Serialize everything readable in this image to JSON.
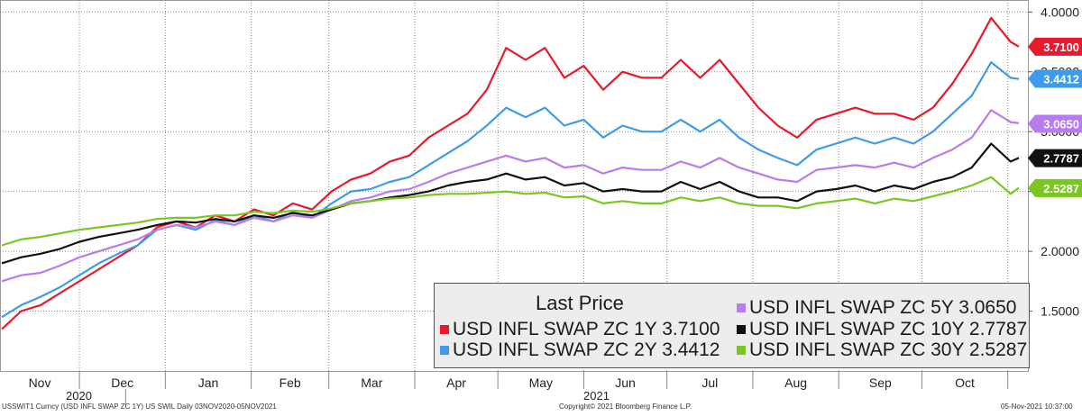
{
  "chart_data": {
    "type": "line",
    "ylim": [
      1.0,
      4.1
    ],
    "y_ticks": [
      "1.5000",
      "2.0000",
      "2.5000",
      "3.0000",
      "3.5000",
      "4.0000"
    ],
    "x_ticks": [
      "Nov",
      "Dec",
      "Jan",
      "Feb",
      "Mar",
      "Apr",
      "May",
      "Jun",
      "Jul",
      "Aug",
      "Sep",
      "Oct"
    ],
    "year_labels": [
      "2020",
      "2021"
    ],
    "grid": true,
    "x": [
      "2020-11-03",
      "2020-11-10",
      "2020-11-17",
      "2020-11-24",
      "2020-12-01",
      "2020-12-08",
      "2020-12-15",
      "2020-12-22",
      "2020-12-29",
      "2021-01-05",
      "2021-01-12",
      "2021-01-19",
      "2021-01-26",
      "2021-02-02",
      "2021-02-09",
      "2021-02-16",
      "2021-02-23",
      "2021-03-02",
      "2021-03-09",
      "2021-03-16",
      "2021-03-23",
      "2021-03-30",
      "2021-04-06",
      "2021-04-13",
      "2021-04-20",
      "2021-04-27",
      "2021-05-04",
      "2021-05-11",
      "2021-05-18",
      "2021-05-25",
      "2021-06-01",
      "2021-06-08",
      "2021-06-15",
      "2021-06-22",
      "2021-06-29",
      "2021-07-06",
      "2021-07-13",
      "2021-07-20",
      "2021-07-27",
      "2021-08-03",
      "2021-08-10",
      "2021-08-17",
      "2021-08-24",
      "2021-08-31",
      "2021-09-07",
      "2021-09-14",
      "2021-09-21",
      "2021-09-28",
      "2021-10-05",
      "2021-10-12",
      "2021-10-19",
      "2021-10-26",
      "2021-11-02",
      "2021-11-05"
    ],
    "series": [
      {
        "name": "USD INFL SWAP ZC 1Y",
        "color": "#e8192c",
        "last": "3.7100",
        "values": [
          1.35,
          1.5,
          1.55,
          1.65,
          1.75,
          1.85,
          1.95,
          2.05,
          2.2,
          2.25,
          2.2,
          2.3,
          2.25,
          2.35,
          2.3,
          2.4,
          2.35,
          2.5,
          2.6,
          2.65,
          2.75,
          2.8,
          2.95,
          3.05,
          3.15,
          3.35,
          3.7,
          3.6,
          3.7,
          3.45,
          3.55,
          3.35,
          3.5,
          3.45,
          3.45,
          3.6,
          3.45,
          3.6,
          3.4,
          3.2,
          3.05,
          2.95,
          3.1,
          3.15,
          3.2,
          3.15,
          3.15,
          3.1,
          3.2,
          3.4,
          3.65,
          3.95,
          3.75,
          3.71
        ]
      },
      {
        "name": "USD INFL SWAP ZC 2Y",
        "color": "#3d9be9",
        "last": "3.4412",
        "values": [
          1.45,
          1.55,
          1.62,
          1.7,
          1.8,
          1.9,
          1.98,
          2.05,
          2.18,
          2.22,
          2.18,
          2.26,
          2.22,
          2.3,
          2.25,
          2.33,
          2.28,
          2.4,
          2.5,
          2.52,
          2.58,
          2.62,
          2.72,
          2.82,
          2.92,
          3.05,
          3.2,
          3.12,
          3.2,
          3.05,
          3.1,
          2.95,
          3.05,
          3.0,
          3.0,
          3.1,
          3.0,
          3.1,
          2.95,
          2.85,
          2.78,
          2.72,
          2.85,
          2.9,
          2.95,
          2.9,
          2.95,
          2.9,
          3.0,
          3.15,
          3.3,
          3.58,
          3.45,
          3.44
        ]
      },
      {
        "name": "USD INFL SWAP ZC 5Y",
        "color": "#b77cf0",
        "last": "3.0650",
        "values": [
          1.75,
          1.8,
          1.82,
          1.88,
          1.95,
          2.0,
          2.05,
          2.1,
          2.18,
          2.22,
          2.2,
          2.25,
          2.22,
          2.28,
          2.25,
          2.3,
          2.28,
          2.35,
          2.42,
          2.45,
          2.5,
          2.52,
          2.58,
          2.65,
          2.7,
          2.75,
          2.8,
          2.75,
          2.78,
          2.7,
          2.72,
          2.65,
          2.7,
          2.68,
          2.68,
          2.75,
          2.7,
          2.78,
          2.7,
          2.65,
          2.6,
          2.58,
          2.68,
          2.7,
          2.72,
          2.7,
          2.74,
          2.7,
          2.78,
          2.85,
          2.95,
          3.18,
          3.08,
          3.07
        ]
      },
      {
        "name": "USD INFL SWAP ZC 10Y",
        "color": "#111111",
        "last": "2.7787",
        "values": [
          1.9,
          1.95,
          1.98,
          2.02,
          2.08,
          2.12,
          2.15,
          2.18,
          2.22,
          2.25,
          2.24,
          2.27,
          2.25,
          2.3,
          2.28,
          2.32,
          2.3,
          2.35,
          2.4,
          2.42,
          2.45,
          2.47,
          2.5,
          2.55,
          2.58,
          2.6,
          2.65,
          2.6,
          2.62,
          2.55,
          2.57,
          2.5,
          2.52,
          2.5,
          2.5,
          2.58,
          2.52,
          2.58,
          2.5,
          2.45,
          2.45,
          2.42,
          2.5,
          2.52,
          2.55,
          2.5,
          2.55,
          2.52,
          2.58,
          2.62,
          2.7,
          2.9,
          2.75,
          2.78
        ]
      },
      {
        "name": "USD INFL SWAP ZC 30Y",
        "color": "#7cc623",
        "last": "2.5287",
        "values": [
          2.05,
          2.1,
          2.12,
          2.15,
          2.18,
          2.2,
          2.22,
          2.24,
          2.27,
          2.28,
          2.28,
          2.3,
          2.3,
          2.33,
          2.32,
          2.34,
          2.33,
          2.36,
          2.4,
          2.42,
          2.44,
          2.45,
          2.47,
          2.48,
          2.48,
          2.49,
          2.5,
          2.48,
          2.49,
          2.45,
          2.46,
          2.4,
          2.42,
          2.4,
          2.4,
          2.45,
          2.42,
          2.45,
          2.4,
          2.38,
          2.38,
          2.36,
          2.4,
          2.42,
          2.44,
          2.4,
          2.44,
          2.42,
          2.46,
          2.5,
          2.55,
          2.62,
          2.48,
          2.53
        ]
      }
    ]
  },
  "legend": {
    "title": "Last Price",
    "items": [
      {
        "text": "USD  INFL  SWAP  ZC  1Y 3.7100",
        "color": "#e8192c"
      },
      {
        "text": "USD  INFL  SWAP  ZC  2Y 3.4412",
        "color": "#3d9be9"
      },
      {
        "text": "USD  INFL  SWAP  ZC  5Y   3.0650",
        "color": "#b77cf0"
      },
      {
        "text": "USD  INFL  SWAP  ZC  10Y 2.7787",
        "color": "#111111"
      },
      {
        "text": "USD  INFL  SWAP  ZC  30Y 2.5287",
        "color": "#7cc623"
      }
    ]
  },
  "footer": {
    "left": "USSWIT1 Curncy (USD INFL SWAP ZC 1Y) US SWIL  Daily 03NOV2020-05NOV2021",
    "center": "Copyright© 2021 Bloomberg Finance L.P.",
    "right": "05-Nov-2021 10:37:00"
  }
}
